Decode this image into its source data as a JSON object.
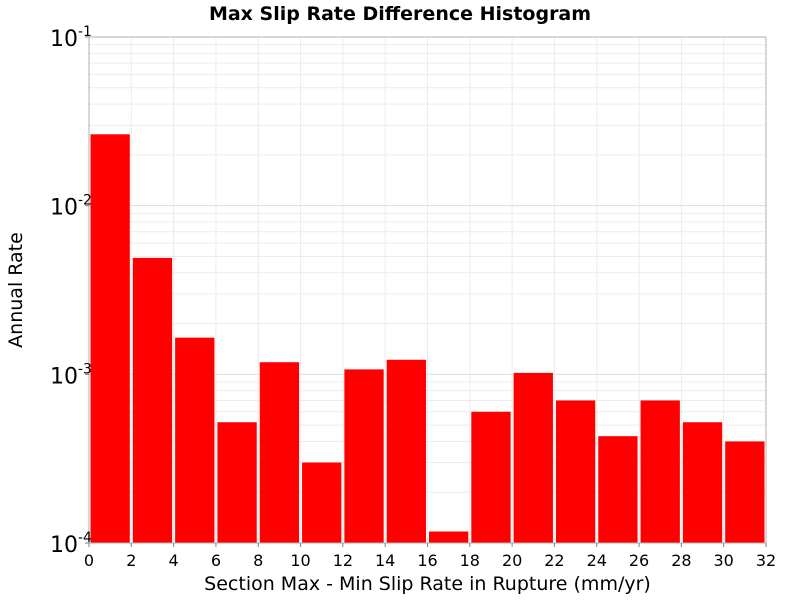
{
  "chart_data": {
    "type": "bar",
    "title": "Max Slip Rate Difference Histogram",
    "xlabel": "Section Max - Min Slip Rate in Rupture (mm/yr)",
    "ylabel": "Annual Rate",
    "x_range": [
      0,
      32
    ],
    "x_ticks": [
      "0",
      "2",
      "4",
      "6",
      "8",
      "10",
      "12",
      "14",
      "16",
      "18",
      "20",
      "22",
      "24",
      "26",
      "28",
      "30",
      "32"
    ],
    "y_scale": "log",
    "y_range": [
      0.0001,
      0.1
    ],
    "y_ticks": [
      {
        "base": "10",
        "exp": "-4"
      },
      {
        "base": "10",
        "exp": "-3"
      },
      {
        "base": "10",
        "exp": "-2"
      },
      {
        "base": "10",
        "exp": "-1"
      }
    ],
    "grid": true,
    "bar_color": "#ff0000",
    "bin_width": 2,
    "bins": [
      {
        "x_start": 0,
        "value": 0.0265
      },
      {
        "x_start": 2,
        "value": 0.0049
      },
      {
        "x_start": 4,
        "value": 0.00165
      },
      {
        "x_start": 6,
        "value": 0.00052
      },
      {
        "x_start": 8,
        "value": 0.00118
      },
      {
        "x_start": 10,
        "value": 0.0003
      },
      {
        "x_start": 12,
        "value": 0.00107
      },
      {
        "x_start": 14,
        "value": 0.00122
      },
      {
        "x_start": 16,
        "value": 0.000117
      },
      {
        "x_start": 18,
        "value": 0.0006
      },
      {
        "x_start": 20,
        "value": 0.00102
      },
      {
        "x_start": 22,
        "value": 0.0007
      },
      {
        "x_start": 24,
        "value": 0.00043
      },
      {
        "x_start": 26,
        "value": 0.0007
      },
      {
        "x_start": 28,
        "value": 0.00052
      },
      {
        "x_start": 30,
        "value": 0.0004
      }
    ]
  }
}
